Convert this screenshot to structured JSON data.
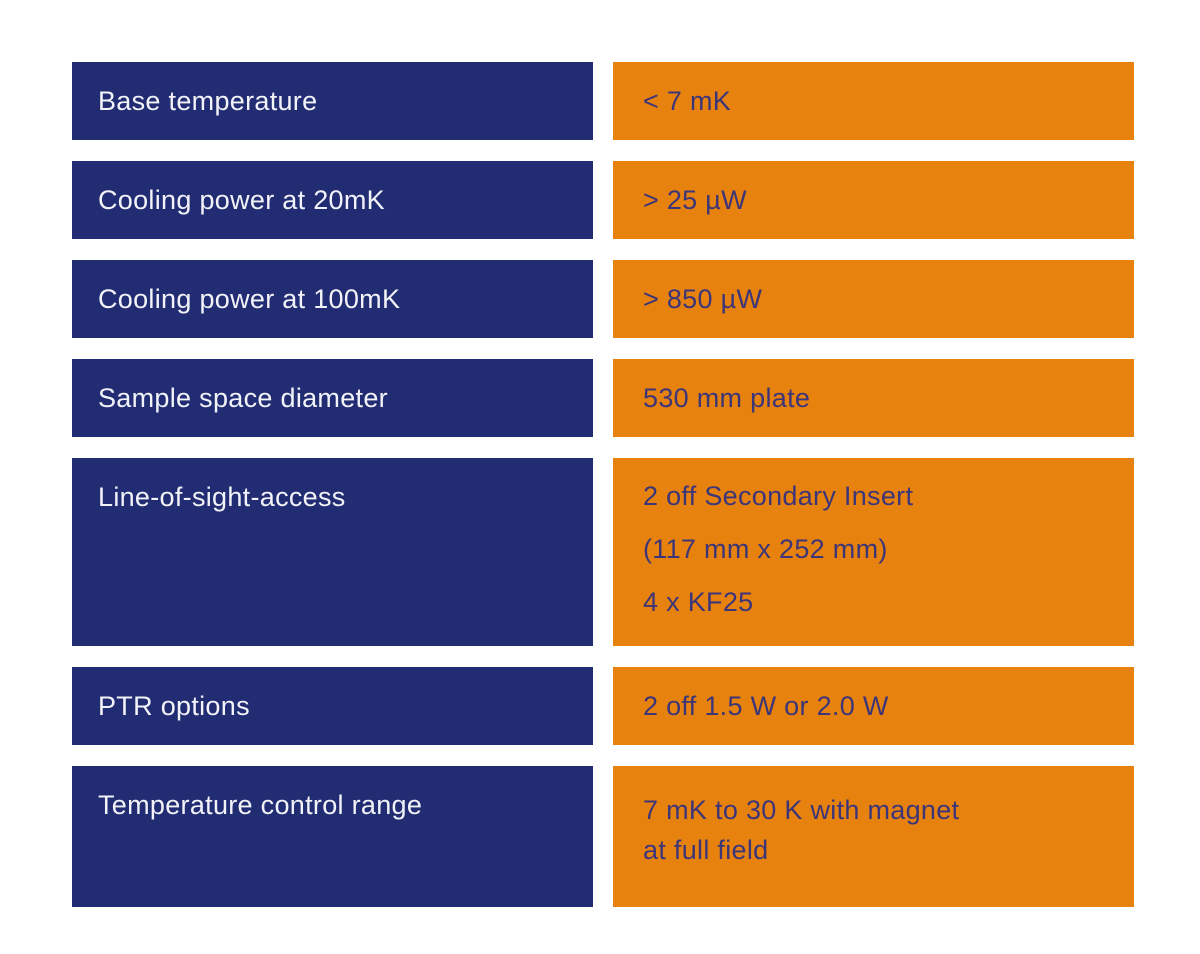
{
  "colors": {
    "background": "#ffffff",
    "label_cell_bg": "#222c72",
    "label_text": "#f2f3f8",
    "value_cell_bg": "#e8820f",
    "value_text": "#3c3578"
  },
  "table": {
    "rows": [
      {
        "label": "Base temperature",
        "values": [
          "< 7 mK"
        ],
        "size": "sm",
        "value_style": "single"
      },
      {
        "label": "Cooling power at 20mK",
        "values": [
          "> 25 µW"
        ],
        "size": "sm",
        "value_style": "single"
      },
      {
        "label": "Cooling power at 100mK",
        "values": [
          "> 850 µW"
        ],
        "size": "sm",
        "value_style": "single"
      },
      {
        "label": "Sample space diameter",
        "values": [
          "530 mm plate"
        ],
        "size": "sm",
        "value_style": "single"
      },
      {
        "label": "Line-of-sight-access",
        "values": [
          "2 off Secondary Insert",
          "(117 mm x 252 mm)",
          "4 x KF25"
        ],
        "size": "lg",
        "value_style": "spread"
      },
      {
        "label": "PTR options",
        "values": [
          "2 off 1.5 W or 2.0 W"
        ],
        "size": "sm",
        "value_style": "single"
      },
      {
        "label": "Temperature control range",
        "values": [
          "7 mK to 30 K with magnet",
          "at full field"
        ],
        "size": "md",
        "value_style": "tight"
      }
    ]
  }
}
